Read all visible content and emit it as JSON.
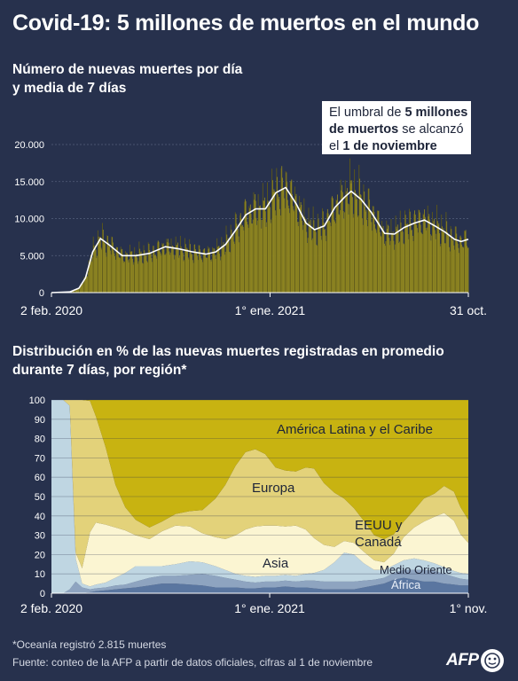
{
  "title": "Covid-19: 5 millones de muertos en el mundo",
  "callout": {
    "line1_pre": "El umbral de ",
    "line1_bold": "5 millones",
    "line2_bold": "de muertos",
    "line2_post": " se alcanzó",
    "line3_pre": "el ",
    "line3_bold": "1 de noviembre"
  },
  "footer": {
    "note": "*Oceanía registró 2.815 muertes",
    "source": "Fuente: conteo de la AFP a partir de datos oficiales, cifras al 1 de noviembre"
  },
  "logo": {
    "text": "AFP"
  },
  "colors": {
    "background": "#27314d",
    "bars": "#8d8420",
    "bars_dark": "#5d5818",
    "average_line": "#ffffff",
    "latam": "#c8b311",
    "europe": "#e3d27a",
    "us_canada": "#fbf5d2",
    "asia": "#bfd6e2",
    "middle_east": "#8ea4c0",
    "africa": "#5a76a0"
  },
  "chart_data": [
    {
      "type": "bar",
      "title_lines": [
        "Número de nuevas muertes por día",
        "y media de 7 días"
      ],
      "ylim": [
        0,
        20000
      ],
      "y_ticks": [
        0,
        5000,
        10000,
        15000,
        20000
      ],
      "y_tick_labels": [
        "0",
        "5.000",
        "10.000",
        "15.000",
        "20.000"
      ],
      "x_tick_labels": [
        "2 feb. 2020",
        "1° ene. 2021",
        "31 oct."
      ],
      "x_tick_dates": [
        "2020-02-02",
        "2021-01-01",
        "2021-10-31"
      ],
      "grid": true,
      "series": [
        {
          "kind": "line",
          "dates": [
            "2020-02-02",
            "2020-03-01",
            "2020-03-15",
            "2020-03-25",
            "2020-04-05",
            "2020-04-17",
            "2020-05-01",
            "2020-05-20",
            "2020-06-10",
            "2020-07-01",
            "2020-07-25",
            "2020-08-15",
            "2020-09-05",
            "2020-09-25",
            "2020-10-10",
            "2020-10-25",
            "2020-11-10",
            "2020-11-25",
            "2020-12-10",
            "2020-12-25",
            "2021-01-10",
            "2021-01-25",
            "2021-02-10",
            "2021-02-25",
            "2021-03-10",
            "2021-03-25",
            "2021-04-10",
            "2021-04-25",
            "2021-05-05",
            "2021-05-20",
            "2021-06-05",
            "2021-06-25",
            "2021-07-10",
            "2021-07-25",
            "2021-08-10",
            "2021-08-25",
            "2021-09-10",
            "2021-09-25",
            "2021-10-10",
            "2021-10-20",
            "2021-10-31"
          ],
          "values": [
            0,
            100,
            600,
            2000,
            5500,
            7300,
            6400,
            5000,
            5000,
            5300,
            6200,
            5900,
            5500,
            5200,
            5500,
            6500,
            8500,
            10500,
            11300,
            11300,
            13500,
            14200,
            12000,
            9400,
            8500,
            9000,
            11500,
            12900,
            13700,
            12600,
            10800,
            8000,
            7900,
            8800,
            9400,
            9800,
            9000,
            8200,
            7200,
            6900,
            7200
          ]
        },
        {
          "kind": "bar",
          "note": "daily deaths, generated around the 7-day average with weekly pattern"
        }
      ]
    },
    {
      "type": "area",
      "stacked": true,
      "title_lines": [
        "Distribución en % de las nuevas muertes registradas en promedio",
        "durante 7 días, por región*"
      ],
      "ylim": [
        0,
        100
      ],
      "y_ticks": [
        0,
        10,
        20,
        30,
        40,
        50,
        60,
        70,
        80,
        90,
        100
      ],
      "x_tick_labels": [
        "2 feb. 2020",
        "1° ene. 2021",
        "1° nov."
      ],
      "x_tick_dates": [
        "2020-02-02",
        "2021-01-01",
        "2021-11-01"
      ],
      "dates": [
        "2020-02-02",
        "2020-02-20",
        "2020-03-01",
        "2020-03-10",
        "2020-03-20",
        "2020-04-01",
        "2020-04-10",
        "2020-04-25",
        "2020-05-10",
        "2020-05-25",
        "2020-06-10",
        "2020-07-01",
        "2020-07-20",
        "2020-08-10",
        "2020-09-01",
        "2020-09-20",
        "2020-10-10",
        "2020-10-25",
        "2020-11-10",
        "2020-11-25",
        "2020-12-10",
        "2020-12-25",
        "2021-01-10",
        "2021-01-25",
        "2021-02-10",
        "2021-02-25",
        "2021-03-10",
        "2021-03-25",
        "2021-04-10",
        "2021-04-25",
        "2021-05-10",
        "2021-05-25",
        "2021-06-10",
        "2021-06-25",
        "2021-07-10",
        "2021-07-25",
        "2021-08-10",
        "2021-08-25",
        "2021-09-10",
        "2021-09-25",
        "2021-10-10",
        "2021-10-20",
        "2021-11-01"
      ],
      "series": [
        {
          "name": "África",
          "values": [
            0,
            0,
            0,
            0,
            0,
            0.5,
            1,
            1.5,
            2,
            2.5,
            3,
            4,
            5,
            5,
            4.5,
            4,
            3,
            3,
            3,
            2.5,
            2.5,
            3,
            3,
            3.5,
            3,
            3,
            2.5,
            2,
            2,
            2,
            2,
            3,
            4,
            5,
            7,
            8,
            7,
            6,
            6,
            5,
            4.5,
            4,
            4
          ]
        },
        {
          "name": "Medio Oriente",
          "values": [
            0,
            0,
            2,
            6,
            3,
            1.5,
            1.5,
            1.5,
            2,
            2,
            3,
            4,
            4,
            4,
            5,
            6,
            6,
            5,
            4,
            3.5,
            3,
            3,
            3,
            3,
            3,
            3.5,
            4,
            4,
            4,
            4,
            4,
            3.5,
            3,
            3,
            3.5,
            4,
            5,
            6,
            5.5,
            5,
            4,
            3.5,
            3
          ]
        },
        {
          "name": "Asia",
          "values": [
            100,
            100,
            95,
            12,
            2,
            1.5,
            2,
            2.5,
            4,
            6,
            8,
            6,
            5,
            6,
            7,
            6,
            5,
            4,
            3,
            3,
            3,
            3,
            3,
            3,
            3,
            3.5,
            4,
            6,
            10,
            15,
            14,
            9,
            5,
            4,
            4,
            5,
            6,
            5,
            4,
            3.5,
            3,
            3,
            3
          ]
        },
        {
          "name": "EEUU y Canadá",
          "values": [
            0,
            0,
            0,
            3,
            8,
            28,
            32,
            30,
            26,
            22,
            16,
            14,
            18,
            20,
            18,
            15,
            15,
            16,
            20,
            24,
            26,
            26,
            26,
            25,
            26,
            23,
            18,
            13,
            8,
            6,
            6,
            6,
            5,
            4,
            6,
            12,
            16,
            20,
            24,
            28,
            26,
            20,
            16
          ]
        },
        {
          "name": "Europa",
          "values": [
            0,
            0,
            3,
            79,
            87,
            68,
            55,
            40,
            22,
            12,
            8,
            6,
            5,
            6,
            8,
            12,
            20,
            28,
            36,
            40,
            40,
            37,
            30,
            29,
            28,
            32,
            36,
            32,
            28,
            22,
            18,
            16,
            13,
            12,
            10,
            8,
            9,
            12,
            12,
            14,
            15,
            14,
            12
          ]
        },
        {
          "name": "América Latina y el Caribe",
          "values": [
            0,
            0,
            0,
            0,
            0,
            0.5,
            8.5,
            24.5,
            44,
            55.5,
            62,
            66,
            63,
            59,
            57.5,
            57,
            51,
            44,
            34,
            27,
            25.5,
            28,
            35,
            36.5,
            37,
            35,
            35.5,
            43,
            48,
            51,
            56,
            62.5,
            70,
            72,
            69.5,
            63,
            57,
            51,
            48.5,
            44.5,
            47.5,
            55.5,
            62
          ]
        }
      ],
      "annotations": [
        "América Latina y el Caribe",
        "Europa",
        "EEUU y",
        "Canadá",
        "Asia",
        "Medio Oriente",
        "África"
      ]
    }
  ]
}
